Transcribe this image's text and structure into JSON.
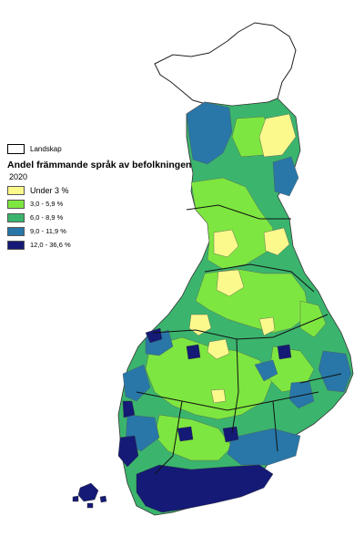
{
  "legend": {
    "boundary_label": "Landskap",
    "title": "Andel främmande språk av befolkningen",
    "year": "2020",
    "classes": [
      {
        "label": "Under 3 %",
        "color": "#fbf98c"
      },
      {
        "label": "3,0 - 5,9 %",
        "color": "#7ee640"
      },
      {
        "label": "6,0 - 8,9 %",
        "color": "#3bb56e"
      },
      {
        "label": "9,0 - 11,9 %",
        "color": "#2877a8"
      },
      {
        "label": "12,0 - 36,6 %",
        "color": "#141a75"
      }
    ]
  },
  "map": {
    "no_data_area": "Lappland (norra delen)",
    "no_data_color": "#ffffff"
  }
}
